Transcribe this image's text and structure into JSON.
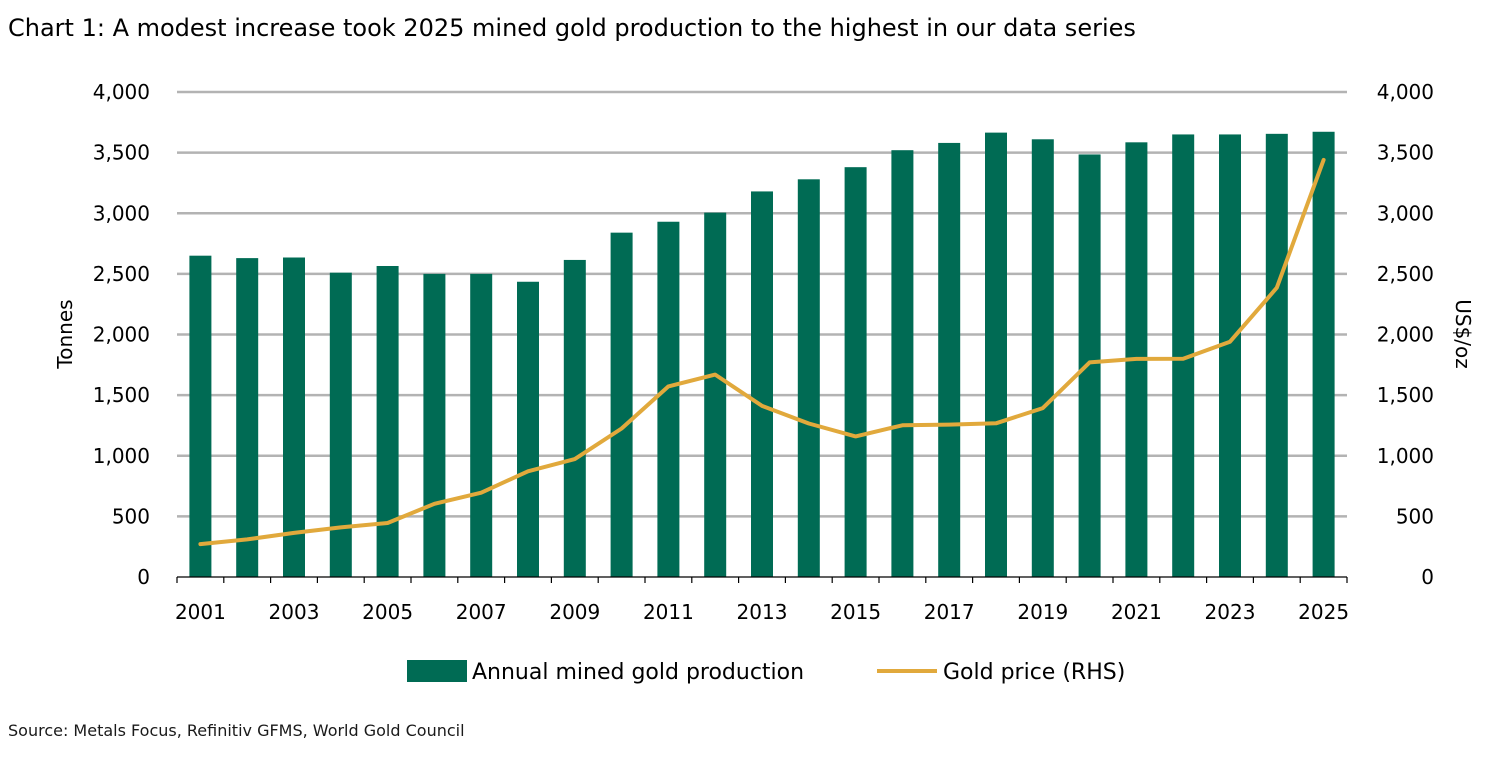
{
  "title": "Chart 1: A modest increase took 2025 mined gold production to the highest in our data series",
  "source": "Source: Metals Focus, Refinitiv GFMS, World Gold Council",
  "colors": {
    "bar": "#006B54",
    "line": "#E1A93C",
    "grid": "#B3B3B3",
    "axis": "#000000"
  },
  "chart_data": {
    "type": "bar",
    "categories": [
      "2001",
      "2002",
      "2003",
      "2004",
      "2005",
      "2006",
      "2007",
      "2008",
      "2009",
      "2010",
      "2011",
      "2012",
      "2013",
      "2014",
      "2015",
      "2016",
      "2017",
      "2018",
      "2019",
      "2020",
      "2021",
      "2022",
      "2023",
      "2024",
      "2025"
    ],
    "x_tick_labels": [
      "2001",
      "2003",
      "2005",
      "2007",
      "2009",
      "2011",
      "2013",
      "2015",
      "2017",
      "2019",
      "2021",
      "2023",
      "2025"
    ],
    "ylabel": "Tonnes",
    "y2label": "US$/oz",
    "ylim": [
      0,
      4000
    ],
    "y2lim": [
      0,
      4000
    ],
    "y_ticks": [
      {
        "value": 0,
        "label": "0"
      },
      {
        "value": 500,
        "label": "500"
      },
      {
        "value": 1000,
        "label": "1,000"
      },
      {
        "value": 1500,
        "label": "1,500"
      },
      {
        "value": 2000,
        "label": "2,000"
      },
      {
        "value": 2500,
        "label": "2,500"
      },
      {
        "value": 3000,
        "label": "3,000"
      },
      {
        "value": 3500,
        "label": "3,500"
      },
      {
        "value": 4000,
        "label": "4,000"
      }
    ],
    "y2_ticks": [
      {
        "value": 0,
        "label": "0"
      },
      {
        "value": 500,
        "label": "500"
      },
      {
        "value": 1000,
        "label": "1,000"
      },
      {
        "value": 1500,
        "label": "1,500"
      },
      {
        "value": 2000,
        "label": "2,000"
      },
      {
        "value": 2500,
        "label": "2,500"
      },
      {
        "value": 3000,
        "label": "3,000"
      },
      {
        "value": 3500,
        "label": "3,500"
      },
      {
        "value": 4000,
        "label": "4,000"
      }
    ],
    "grid": true,
    "legend_position": "bottom",
    "series": [
      {
        "name": "Annual mined gold production",
        "type": "bar",
        "axis": "left",
        "values": [
          2650,
          2630,
          2635,
          2510,
          2565,
          2500,
          2500,
          2435,
          2615,
          2840,
          2930,
          3005,
          3180,
          3280,
          3380,
          3520,
          3580,
          3665,
          3610,
          3485,
          3585,
          3650,
          3650,
          3655,
          3672
        ]
      },
      {
        "name": "Gold price (RHS)",
        "type": "line",
        "axis": "right",
        "values": [
          271,
          310,
          364,
          409,
          445,
          604,
          695,
          872,
          972,
          1225,
          1572,
          1669,
          1411,
          1266,
          1160,
          1251,
          1257,
          1268,
          1393,
          1770,
          1799,
          1800,
          1941,
          2386,
          3440
        ]
      }
    ]
  }
}
